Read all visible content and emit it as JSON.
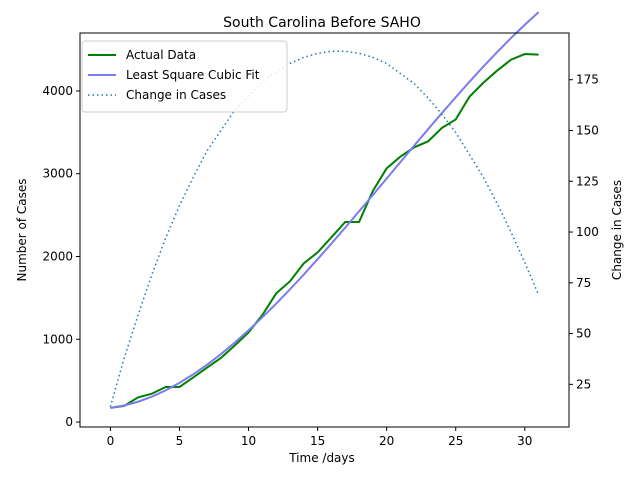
{
  "chart_data": {
    "type": "line",
    "title": "South Carolina Before SAHO",
    "xlabel": "Time /days",
    "ylabel_left": "Number of Cases",
    "ylabel_right": "Change in Cases",
    "xlim": [
      -2.2,
      33.2
    ],
    "ylim_left": [
      -60,
      4700
    ],
    "ylim_right": [
      4,
      198
    ],
    "x_ticks": [
      0,
      5,
      10,
      15,
      20,
      25,
      30
    ],
    "y_ticks_left": [
      0,
      1000,
      2000,
      3000,
      4000
    ],
    "y_ticks_right": [
      25,
      50,
      75,
      100,
      125,
      150,
      175
    ],
    "grid": false,
    "legend_position": "upper left",
    "series": [
      {
        "name": "Actual Data",
        "axis": "left",
        "color": "#008000",
        "style": "solid",
        "x": [
          0,
          1,
          2,
          3,
          4,
          5,
          6,
          7,
          8,
          9,
          10,
          11,
          12,
          13,
          14,
          15,
          16,
          17,
          18,
          19,
          20,
          21,
          22,
          23,
          24,
          25,
          26,
          27,
          28,
          29,
          30,
          31
        ],
        "values": [
          171,
          195,
          298,
          342,
          424,
          424,
          539,
          658,
          774,
          925,
          1083,
          1293,
          1554,
          1700,
          1917,
          2049,
          2232,
          2417,
          2417,
          2792,
          3065,
          3207,
          3319,
          3391,
          3553,
          3656,
          3931,
          4099,
          4246,
          4377,
          4446,
          4439
        ]
      },
      {
        "name": "Least Square Cubic Fit",
        "axis": "left",
        "color": "#7b7bf0",
        "style": "solid",
        "x": [
          0,
          1,
          2,
          3,
          4,
          5,
          6,
          7,
          8,
          9,
          10,
          11,
          12,
          13,
          14,
          15,
          16,
          17,
          18,
          19,
          20,
          21,
          22,
          23,
          24,
          25,
          26,
          27,
          28,
          29,
          30,
          31
        ],
        "values": [
          172,
          200,
          245,
          306,
          382,
          473,
          577,
          693,
          820,
          959,
          1107,
          1265,
          1430,
          1603,
          1782,
          1967,
          2156,
          2349,
          2545,
          2743,
          2942,
          3142,
          3341,
          3538,
          3733,
          3924,
          4112,
          4294,
          4470,
          4639,
          4800,
          4952
        ]
      },
      {
        "name": "Change in Cases",
        "axis": "right",
        "color": "#1f77b4",
        "style": "dotted",
        "x": [
          0,
          1,
          2,
          3,
          4,
          5,
          6,
          7,
          8,
          9,
          10,
          11,
          12,
          13,
          14,
          15,
          16,
          17,
          18,
          19,
          20,
          21,
          22,
          23,
          24,
          25,
          26,
          27,
          28,
          29,
          30,
          31
        ],
        "values": [
          14,
          38,
          59,
          79,
          97,
          113,
          127,
          140,
          150,
          160,
          167,
          174,
          179,
          183,
          186,
          188,
          189,
          189,
          188,
          186,
          183,
          178,
          173,
          166,
          158,
          149,
          138,
          127,
          114,
          100,
          85,
          69
        ]
      }
    ]
  }
}
